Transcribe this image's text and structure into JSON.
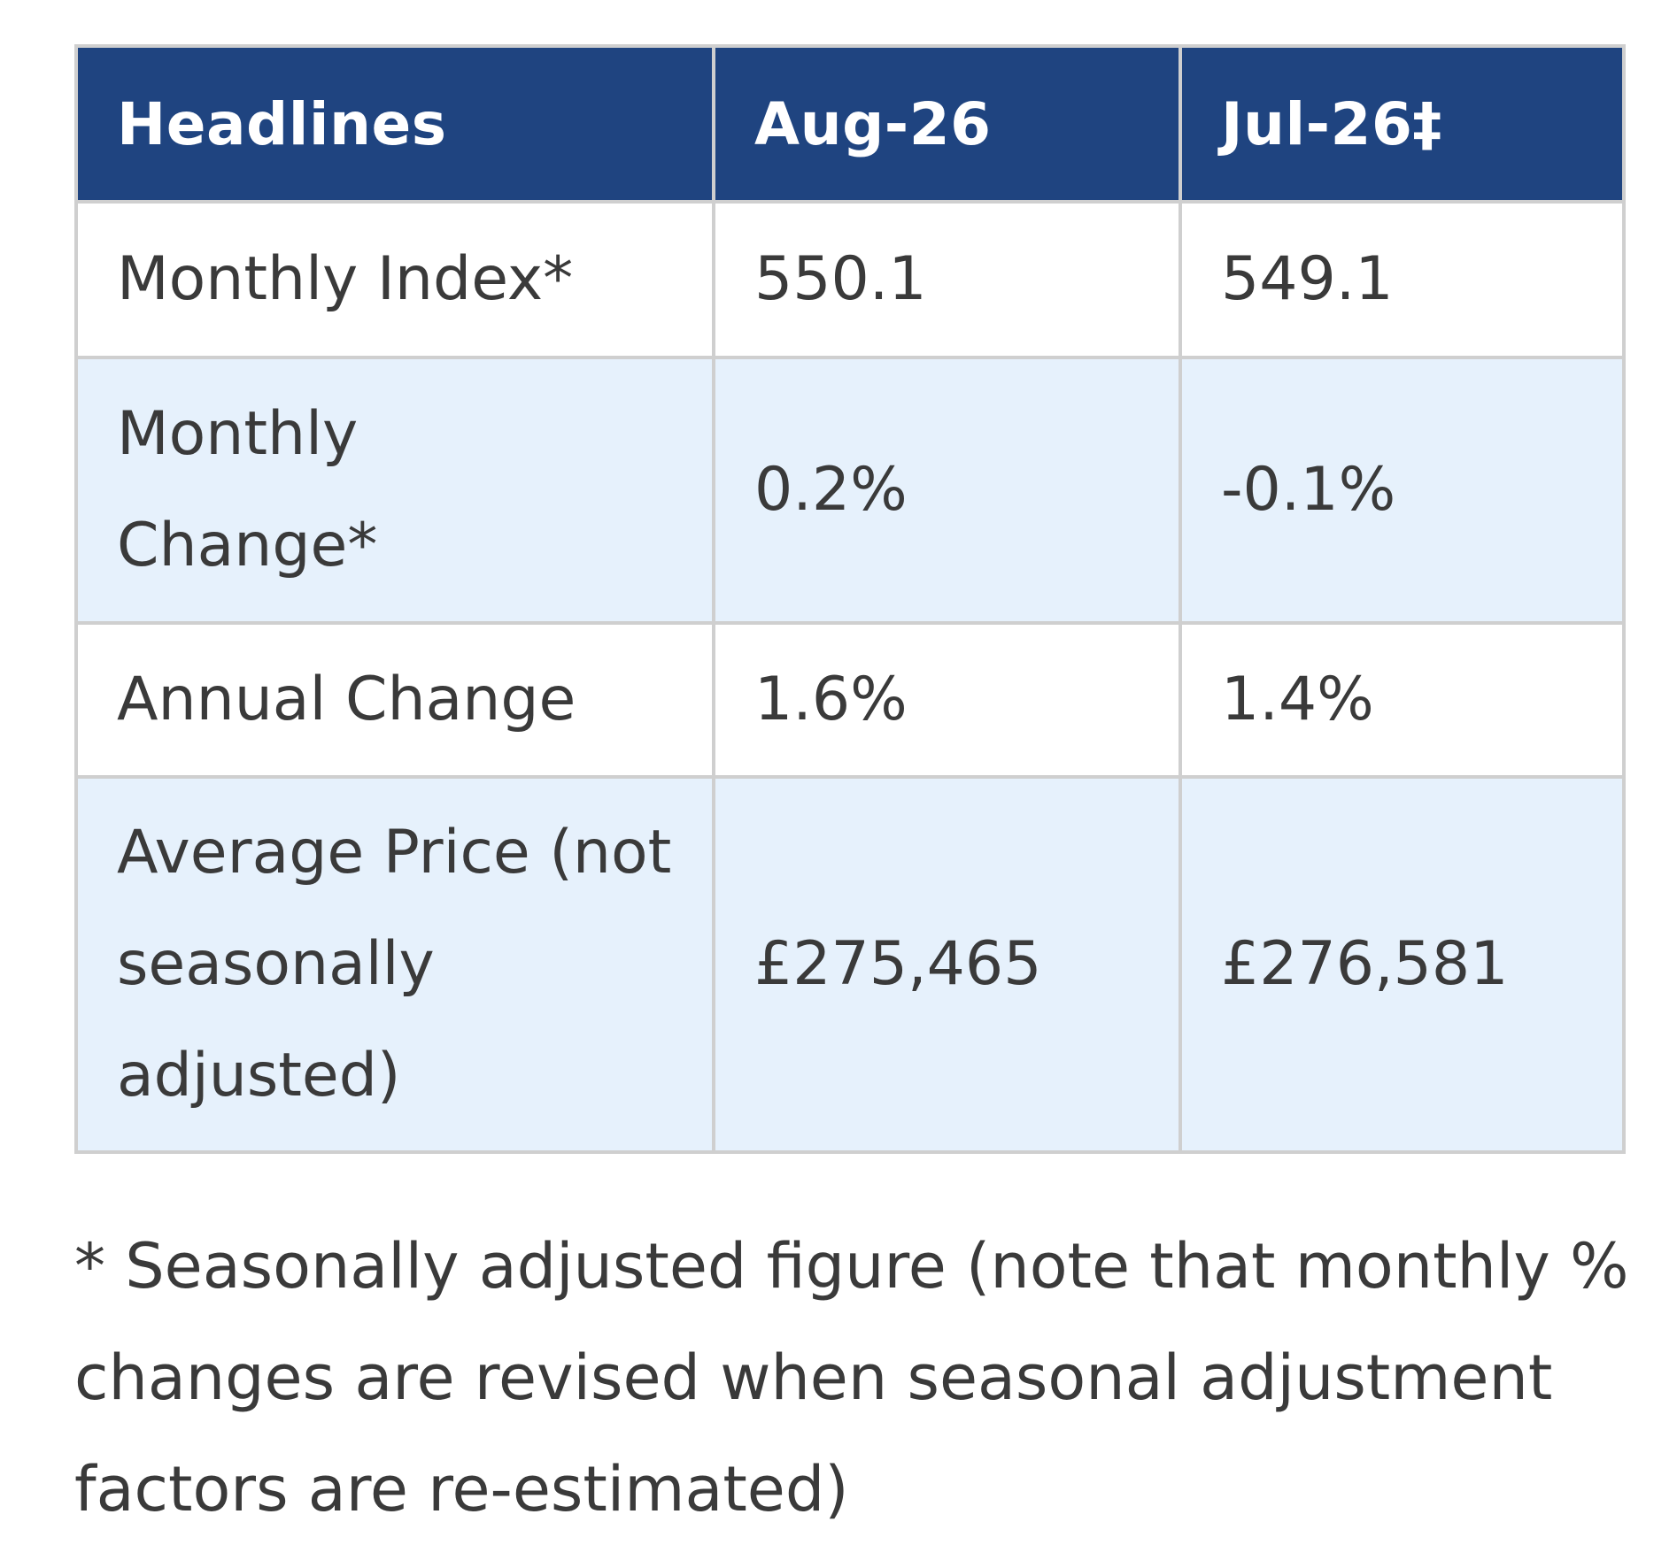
{
  "table": {
    "headers": [
      "Headlines",
      "Aug-26",
      "Jul-26‡"
    ],
    "rows": [
      {
        "label": "Monthly Index*",
        "aug": "550.1",
        "jul": "549.1"
      },
      {
        "label": "Monthly Change*",
        "aug": "0.2%",
        "jul": "-0.1%"
      },
      {
        "label": "Annual Change",
        "aug": "1.6%",
        "jul": "1.4%"
      },
      {
        "label": "Average Price (not seasonally adjusted)",
        "aug": "£275,465",
        "jul": "£276,581"
      }
    ]
  },
  "footnote": "* Seasonally adjusted figure (note that monthly % changes are revised when seasonal adjustment factors are re-estimated)",
  "colors": {
    "header_bg": "#1f4480",
    "header_text": "#ffffff",
    "row_alt_bg": "#e6f1fc",
    "border": "#cfcfcf"
  }
}
